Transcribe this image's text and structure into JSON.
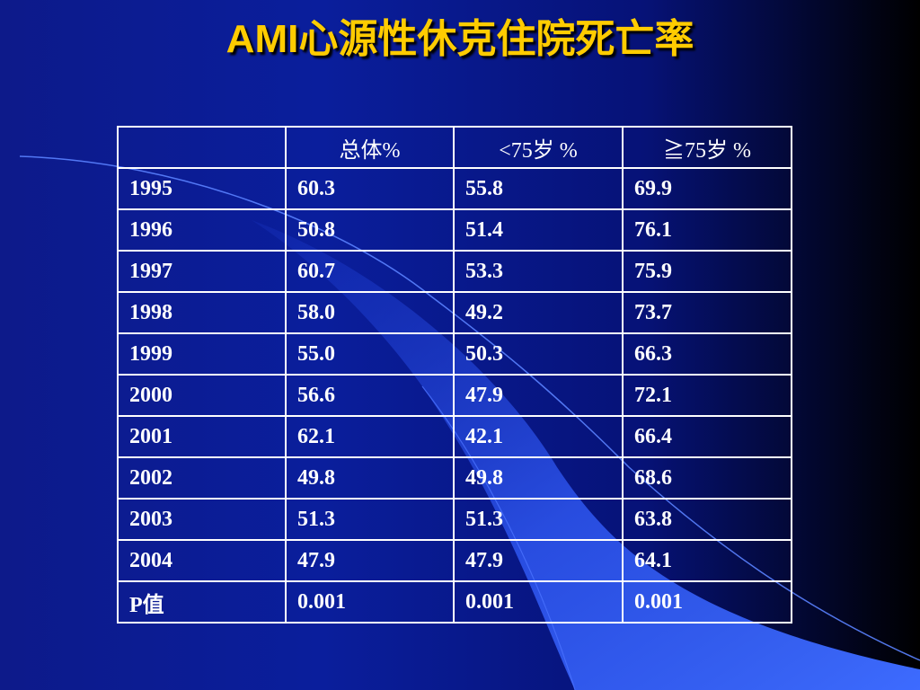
{
  "slide": {
    "title": "AMI心源性休克住院死亡率"
  },
  "table": {
    "headers": [
      "",
      "总体%",
      "<75岁 %",
      "≧75岁 %"
    ],
    "rows": [
      [
        "1995",
        "60.3",
        "55.8",
        "69.9"
      ],
      [
        "1996",
        "50.8",
        "51.4",
        "76.1"
      ],
      [
        "1997",
        "60.7",
        "53.3",
        "75.9"
      ],
      [
        "1998",
        "58.0",
        "49.2",
        "73.7"
      ],
      [
        "1999",
        "55.0",
        "50.3",
        "66.3"
      ],
      [
        "2000",
        "56.6",
        "47.9",
        "72.1"
      ],
      [
        "2001",
        "62.1",
        "42.1",
        "66.4"
      ],
      [
        "2002",
        "49.8",
        "49.8",
        "68.6"
      ],
      [
        "2003",
        "51.3",
        "51.3",
        "63.8"
      ],
      [
        "2004",
        "47.9",
        "47.9",
        "64.1"
      ],
      [
        "P值",
        "0.001",
        "0.001",
        "0.001"
      ]
    ]
  },
  "colors": {
    "title": "#ffcc00",
    "text": "#ffffff",
    "background": "#0a1e9c",
    "swoosh": "#3a64ff"
  }
}
